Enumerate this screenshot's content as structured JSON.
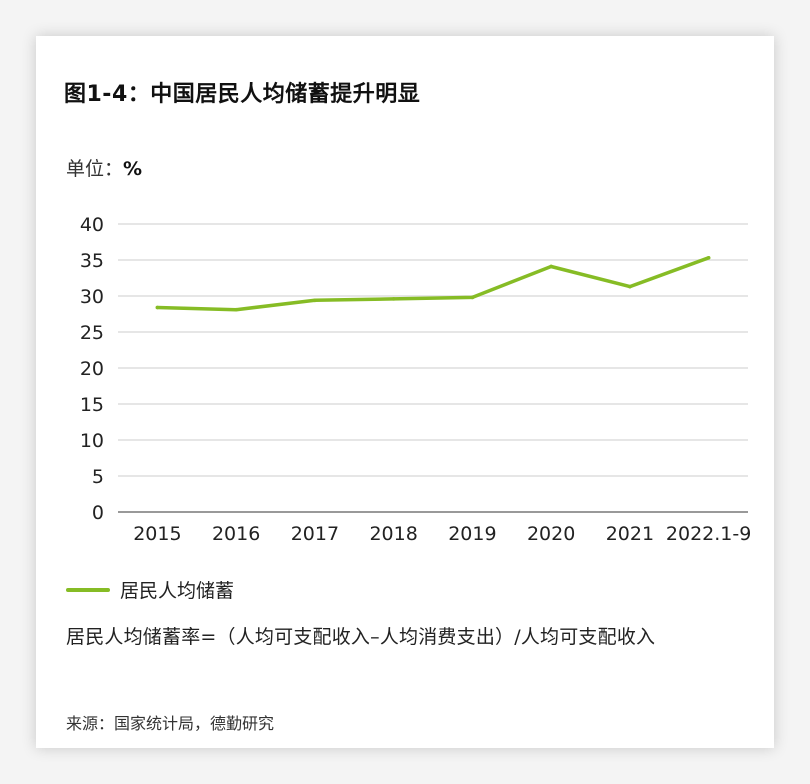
{
  "title": "图1-4：中国居民人均储蓄提升明显",
  "unit_label": "单位：",
  "unit_value": "%",
  "legend_label": "居民人均储蓄",
  "formula": "居民人均储蓄率=（人均可支配收入–人均消费支出）/人均可支配收入",
  "source": "来源：国家统计局，德勤研究",
  "colors": {
    "series": "#86bc25",
    "grid": "#e6e6e6",
    "axis": "#999999"
  },
  "chart_data": {
    "type": "line",
    "title": "图1-4：中国居民人均储蓄提升明显",
    "ylabel": "单位：%",
    "categories": [
      "2015",
      "2016",
      "2017",
      "2018",
      "2019",
      "2020",
      "2021",
      "2022.1-9"
    ],
    "y_ticks": [
      "0",
      "5",
      "10",
      "15",
      "20",
      "25",
      "30",
      "35",
      "40"
    ],
    "ylim": [
      0,
      40
    ],
    "grid": true,
    "legend_position": "bottom-left",
    "series": [
      {
        "name": "居民人均储蓄",
        "values": [
          28.4,
          28.1,
          29.4,
          29.6,
          29.8,
          34.1,
          31.3,
          35.3
        ]
      }
    ]
  }
}
